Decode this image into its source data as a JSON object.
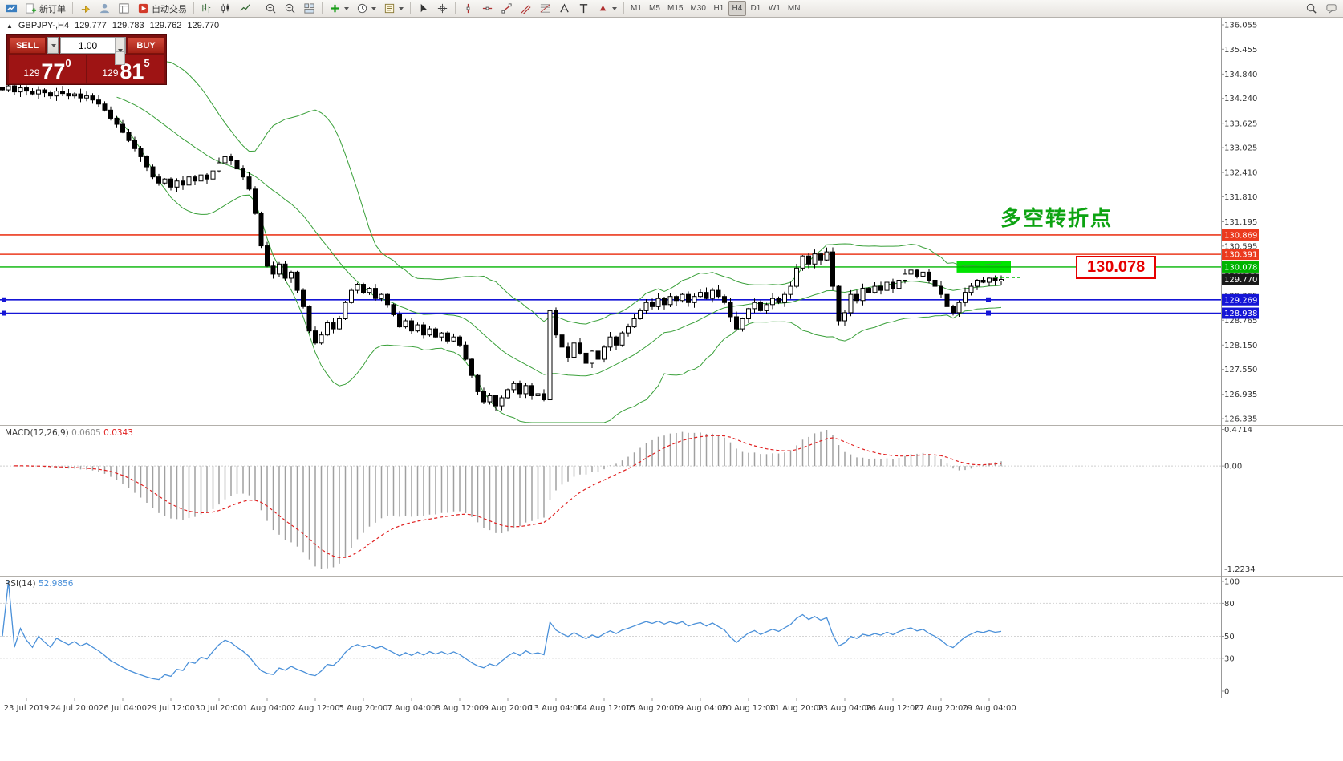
{
  "toolbar": {
    "new_order_label": "新订单",
    "auto_trading_label": "自动交易",
    "timeframes": [
      "M1",
      "M5",
      "M15",
      "M30",
      "H1",
      "H4",
      "D1",
      "W1",
      "MN"
    ],
    "active_timeframe": "H4",
    "icons": [
      "app-menu",
      "new-order",
      "chart-shift",
      "profiles",
      "data-window",
      "auto-trading",
      "bar-chart",
      "candlestick-chart",
      "line-chart",
      "zoom-in",
      "zoom-out",
      "tile-windows",
      "indicators",
      "periods",
      "templates",
      "cursor",
      "crosshair",
      "horizontal-line",
      "trendline",
      "channel",
      "fibonacci",
      "text-label",
      "text",
      "arrows",
      "search",
      "chat"
    ]
  },
  "symbol_info": {
    "marker": "▲",
    "symbol": "GBPJPY-,H4",
    "open": "129.777",
    "high": "129.783",
    "low": "129.762",
    "close": "129.770"
  },
  "trade_panel": {
    "sell_label": "SELL",
    "buy_label": "BUY",
    "volume": "1.00",
    "sell_price_prefix": "129",
    "sell_price_big": "77",
    "sell_price_sup": "0",
    "buy_price_prefix": "129",
    "buy_price_big": "81",
    "buy_price_sup": "5"
  },
  "annotations": {
    "turning_point_text": "多空转折点",
    "price_callout": "130.078"
  },
  "chart_data": {
    "type": "candlestick",
    "symbol": "GBPJPY",
    "timeframe": "H4",
    "price_axis": {
      "min": 126.335,
      "max": 136.055,
      "ticks": [
        "136.055",
        "135.455",
        "134.840",
        "134.240",
        "133.625",
        "133.025",
        "132.410",
        "131.810",
        "131.195",
        "130.595",
        "129.980",
        "129.365",
        "128.765",
        "128.150",
        "127.550",
        "126.935",
        "126.335"
      ]
    },
    "closes": [
      134.45,
      134.55,
      134.4,
      134.5,
      134.42,
      134.35,
      134.45,
      134.38,
      134.3,
      134.42,
      134.36,
      134.3,
      134.35,
      134.25,
      134.3,
      134.2,
      134.1,
      133.95,
      133.75,
      133.6,
      133.4,
      133.2,
      133.0,
      132.8,
      132.55,
      132.3,
      132.15,
      132.25,
      132.05,
      132.2,
      132.1,
      132.3,
      132.2,
      132.35,
      132.25,
      132.45,
      132.65,
      132.8,
      132.7,
      132.5,
      132.3,
      132.0,
      131.4,
      130.6,
      130.1,
      129.9,
      130.15,
      129.8,
      129.95,
      129.5,
      129.1,
      128.5,
      128.2,
      128.4,
      128.7,
      128.55,
      128.8,
      129.2,
      129.5,
      129.65,
      129.45,
      129.55,
      129.3,
      129.4,
      129.15,
      128.9,
      128.6,
      128.75,
      128.5,
      128.65,
      128.4,
      128.55,
      128.35,
      128.45,
      128.25,
      128.35,
      128.15,
      127.8,
      127.4,
      127.0,
      126.75,
      126.9,
      126.65,
      126.85,
      127.05,
      127.2,
      126.95,
      127.15,
      126.9,
      126.95,
      126.8,
      129.0,
      128.4,
      128.1,
      127.85,
      128.2,
      127.95,
      127.7,
      128.0,
      127.8,
      128.1,
      128.35,
      128.15,
      128.45,
      128.6,
      128.8,
      129.0,
      129.2,
      129.1,
      129.3,
      129.15,
      129.35,
      129.25,
      129.4,
      129.2,
      129.35,
      129.45,
      129.3,
      129.5,
      129.35,
      129.2,
      128.85,
      128.55,
      128.8,
      129.05,
      129.2,
      129.0,
      129.15,
      129.3,
      129.2,
      129.4,
      129.6,
      130.05,
      130.35,
      130.15,
      130.4,
      130.25,
      130.45,
      129.6,
      128.75,
      128.95,
      129.4,
      129.25,
      129.55,
      129.45,
      129.6,
      129.5,
      129.7,
      129.55,
      129.75,
      129.9,
      130.0,
      129.85,
      129.95,
      129.75,
      129.6,
      129.4,
      129.1,
      128.95,
      129.2,
      129.45,
      129.6,
      129.75,
      129.7,
      129.8,
      129.73,
      129.77
    ],
    "h_lines": [
      {
        "price": 130.869,
        "label": "130.869",
        "color": "#eb3a1e",
        "width": 1.6
      },
      {
        "price": 130.391,
        "label": "130.391",
        "color": "#eb3a1e",
        "width": 1.6
      },
      {
        "price": 130.078,
        "label": "130.078",
        "color": "#00b400",
        "width": 1.3
      },
      {
        "price": 129.269,
        "label": "129.269",
        "color": "#1515d6",
        "width": 1.6,
        "anchors": true
      },
      {
        "price": 128.938,
        "label": "128.938",
        "color": "#1515d6",
        "width": 1.6,
        "anchors": true
      }
    ],
    "current_price": {
      "value": 129.77,
      "label": "129.770",
      "tag_color": "#1a1a1a"
    },
    "ask_line": {
      "value": 129.815,
      "color": "#00b400"
    },
    "highlight_box": {
      "from_idx": 159,
      "to_idx": 168,
      "price_top": 130.216,
      "price_bottom": 129.94,
      "color": "#00e400"
    },
    "indicators": {
      "bollinger": {
        "period": 20,
        "deviation": 2,
        "color": "#3aa03a"
      },
      "macd": {
        "name": "MACD(12,26,9)",
        "main_value": "0.0605",
        "signal_value": "0.0343",
        "histogram_color": "#a0a0a0",
        "signal_color": "#e02020",
        "scale": [
          "0.4714",
          "0.00",
          "-1.2234"
        ]
      },
      "rsi": {
        "name": "RSI(14)",
        "value": "52.9856",
        "color": "#4a90d9",
        "scale": [
          "100",
          "80",
          "50",
          "30",
          "0"
        ],
        "levels": [
          80,
          50,
          30
        ]
      }
    },
    "time_labels": [
      {
        "idx": 4,
        "text": "23 Jul 2019"
      },
      {
        "idx": 12,
        "text": "24 Jul 20:00"
      },
      {
        "idx": 20,
        "text": "26 Jul 04:00"
      },
      {
        "idx": 28,
        "text": "29 Jul 12:00"
      },
      {
        "idx": 36,
        "text": "30 Jul 20:00"
      },
      {
        "idx": 44,
        "text": "1 Aug 04:00"
      },
      {
        "idx": 52,
        "text": "2 Aug 12:00"
      },
      {
        "idx": 60,
        "text": "5 Aug 20:00"
      },
      {
        "idx": 68,
        "text": "7 Aug 04:00"
      },
      {
        "idx": 76,
        "text": "8 Aug 12:00"
      },
      {
        "idx": 84,
        "text": "9 Aug 20:00"
      },
      {
        "idx": 92,
        "text": "13 Aug 04:00"
      },
      {
        "idx": 100,
        "text": "14 Aug 12:00"
      },
      {
        "idx": 108,
        "text": "15 Aug 20:00"
      },
      {
        "idx": 116,
        "text": "19 Aug 04:00"
      },
      {
        "idx": 124,
        "text": "20 Aug 12:00"
      },
      {
        "idx": 132,
        "text": "21 Aug 20:00"
      },
      {
        "idx": 140,
        "text": "23 Aug 04:00"
      },
      {
        "idx": 148,
        "text": "26 Aug 12:00"
      },
      {
        "idx": 156,
        "text": "27 Aug 20:00"
      },
      {
        "idx": 164,
        "text": "29 Aug 04:00"
      }
    ]
  }
}
